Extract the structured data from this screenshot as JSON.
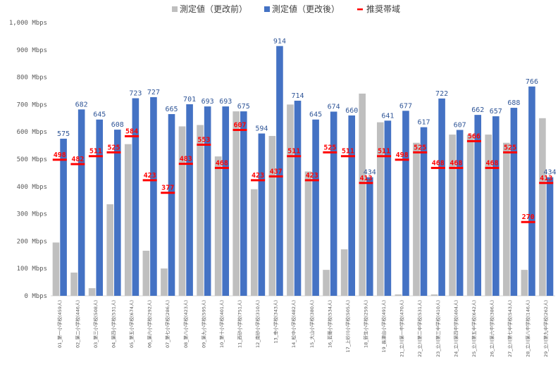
{
  "chart_data": {
    "type": "bar",
    "ylim": [
      0,
      1000
    ],
    "y_ticks": [
      "0 Mbps",
      "100 Mbps",
      "200 Mbps",
      "300 Mbps",
      "400 Mbps",
      "500 Mbps",
      "600 Mbps",
      "700 Mbps",
      "800 Mbps",
      "900 Mbps",
      "1,000 Mbps"
    ],
    "legend": {
      "position": "top-center",
      "items": [
        {
          "label": "測定値（更改前）",
          "color": "#bfbfbf",
          "marker": "square"
        },
        {
          "label": "測定値（更改後）",
          "color": "#4472c4",
          "marker": "square"
        },
        {
          "label": "推奨帯域",
          "color": "#ff0000",
          "marker": "dash"
        }
      ]
    },
    "categories": [
      "01_第一小学校(459人)",
      "02_第二小学校(446人)",
      "03_第三小学校(508人)",
      "04_第四小学校(531人)",
      "05_第五小学校(674人)",
      "06_第六小学校(292人)",
      "07_第七小学校(286人)",
      "08_第八小学校(423人)",
      "09_第九小学校(595人)",
      "10_第十小学校(401人)",
      "11_西砂小学校(751人)",
      "12_南砂小学校(310人)",
      "13_幸小学校(343人)",
      "14_松中小学校(482人)",
      "15_大山小学校(380人)",
      "16_若葉小学校(534人)",
      "17_上砂川小学校(505人)",
      "18_新生小学校(259人)",
      "19_長瀬台小学校(491人)",
      "21_立川第一中学校(470人)",
      "22_立川第二中学校(531人)",
      "23_立川第三中学校(410人)",
      "24_立川第四中学校(404人)",
      "25_立川第五中学校(642人)",
      "26_立川第六中学校(386人)",
      "27_立川第七中学校(543人)",
      "28_立川第八中学校(146人)",
      "29_立川第九中学校(262人)"
    ],
    "series": [
      {
        "name": "測定値（更改前）",
        "color": "#bfbfbf",
        "values": [
          195,
          85,
          28,
          335,
          555,
          165,
          100,
          620,
          625,
          510,
          675,
          390,
          585,
          700,
          455,
          95,
          170,
          740,
          635,
          5,
          560,
          5,
          590,
          590,
          590,
          560,
          95,
          650
        ]
      },
      {
        "name": "測定値（更改後）",
        "color": "#4472c4",
        "values": [
          575,
          682,
          645,
          608,
          723,
          727,
          665,
          701,
          693,
          693,
          675,
          594,
          914,
          714,
          645,
          674,
          660,
          434,
          641,
          677,
          617,
          722,
          607,
          662,
          657,
          688,
          766,
          434
        ]
      },
      {
        "name": "推奨帯域",
        "color": "#ff0000",
        "values": [
          498,
          482,
          511,
          525,
          584,
          423,
          377,
          483,
          553,
          468,
          607,
          423,
          437,
          511,
          423,
          525,
          511,
          413,
          511,
          498,
          525,
          468,
          468,
          566,
          468,
          525,
          270,
          413
        ]
      }
    ],
    "after_labels": [
      "575",
      "682",
      "645",
      "608",
      "723",
      "727",
      "665",
      "701",
      "693",
      "693",
      "675",
      "594",
      "914",
      "714",
      "645",
      "674",
      "660",
      "434",
      "641",
      "677",
      "617",
      "722",
      "607",
      "662",
      "657",
      "688",
      "766",
      "434"
    ],
    "rec_labels": [
      "498",
      "482",
      "511",
      "525",
      "584",
      "423",
      "377",
      "483",
      "553",
      "468",
      "607",
      "423",
      "437",
      "511",
      "423",
      "525",
      "511",
      "413",
      "511",
      "498",
      "525",
      "468",
      "468",
      "566",
      "468",
      "525",
      "270",
      "413"
    ],
    "grid": false
  }
}
